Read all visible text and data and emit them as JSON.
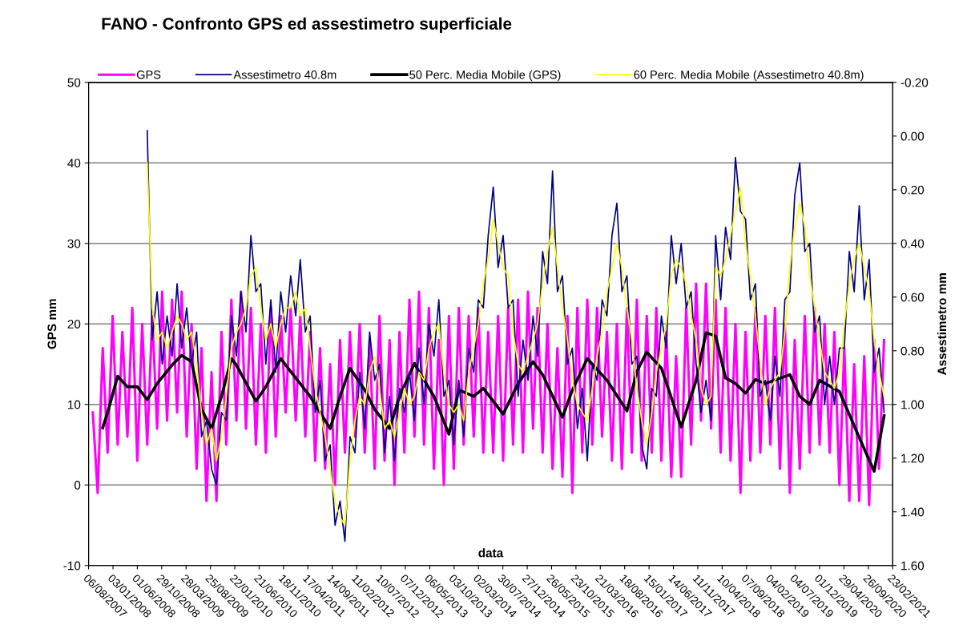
{
  "chart_data": {
    "type": "line",
    "title": "FANO - Confronto GPS ed assestimetro superficiale",
    "xlabel": "data",
    "ylabel": "GPS mm",
    "y2label": "Assestimetro mm",
    "xlim": [
      "2007-08-06",
      "2021-02-23"
    ],
    "xticks": [
      {
        "value": "2007-08-06",
        "label": "06/08/2007"
      },
      {
        "value": "2008-01-03",
        "label": "03/01/2008"
      },
      {
        "value": "2008-06-01",
        "label": "01/06/2008"
      },
      {
        "value": "2008-10-29",
        "label": "29/10/2008"
      },
      {
        "value": "2009-03-28",
        "label": "28/03/2009"
      },
      {
        "value": "2009-08-25",
        "label": "25/08/2009"
      },
      {
        "value": "2010-01-22",
        "label": "22/01/2010"
      },
      {
        "value": "2010-06-21",
        "label": "21/06/2010"
      },
      {
        "value": "2010-11-18",
        "label": "18/11/2010"
      },
      {
        "value": "2011-04-17",
        "label": "17/04/2011"
      },
      {
        "value": "2011-09-14",
        "label": "14/09/2011"
      },
      {
        "value": "2012-02-11",
        "label": "11/02/2012"
      },
      {
        "value": "2012-07-10",
        "label": "10/07/2012"
      },
      {
        "value": "2012-12-07",
        "label": "07/12/2012"
      },
      {
        "value": "2013-05-06",
        "label": "06/05/2013"
      },
      {
        "value": "2013-10-03",
        "label": "03/10/2013"
      },
      {
        "value": "2014-03-02",
        "label": "02/03/2014"
      },
      {
        "value": "2014-07-30",
        "label": "30/07/2014"
      },
      {
        "value": "2014-12-27",
        "label": "27/12/2014"
      },
      {
        "value": "2015-05-26",
        "label": "26/05/2015"
      },
      {
        "value": "2015-10-23",
        "label": "23/10/2015"
      },
      {
        "value": "2016-03-21",
        "label": "21/03/2016"
      },
      {
        "value": "2016-08-18",
        "label": "18/08/2016"
      },
      {
        "value": "2017-01-15",
        "label": "15/01/2017"
      },
      {
        "value": "2017-06-14",
        "label": "14/06/2017"
      },
      {
        "value": "2017-11-11",
        "label": "11/11/2017"
      },
      {
        "value": "2018-04-10",
        "label": "10/04/2018"
      },
      {
        "value": "2018-09-07",
        "label": "07/09/2018"
      },
      {
        "value": "2019-02-04",
        "label": "04/02/2019"
      },
      {
        "value": "2019-07-04",
        "label": "04/07/2019"
      },
      {
        "value": "2019-12-01",
        "label": "01/12/2019"
      },
      {
        "value": "2020-04-29",
        "label": "29/04/2020"
      },
      {
        "value": "2020-09-26",
        "label": "26/09/2020"
      },
      {
        "value": "2021-02-23",
        "label": "23/02/2021"
      }
    ],
    "ylim": [
      -10,
      50
    ],
    "yticks": [
      -10,
      0,
      10,
      20,
      30,
      40,
      50
    ],
    "y2lim": [
      1.6,
      -0.2
    ],
    "y2ticks": [
      {
        "value": -0.2,
        "label": "-0.20"
      },
      {
        "value": 0,
        "label": "0.00"
      },
      {
        "value": 0.2,
        "label": "0.20"
      },
      {
        "value": 0.4,
        "label": "0.40"
      },
      {
        "value": 0.6,
        "label": "0.60"
      },
      {
        "value": 0.8,
        "label": "0.80"
      },
      {
        "value": 1.0,
        "label": "1.00"
      },
      {
        "value": 1.2,
        "label": "1.20"
      },
      {
        "value": 1.4,
        "label": "1.40"
      },
      {
        "value": 1.6,
        "label": "1.60"
      }
    ],
    "grid": "y",
    "legend": "top",
    "marker": "none",
    "line_style": "solid",
    "series": [
      {
        "name": "GPS",
        "color": "#ff00ff",
        "x": [
          "2007-09",
          "2007-10",
          "2007-11",
          "2007-12",
          "2008-01",
          "2008-02",
          "2008-03",
          "2008-04",
          "2008-05",
          "2008-06",
          "2008-07",
          "2008-08",
          "2008-09",
          "2008-10",
          "2008-11",
          "2008-12",
          "2009-01",
          "2009-02",
          "2009-03",
          "2009-04",
          "2009-05",
          "2009-06",
          "2009-07",
          "2009-08",
          "2009-09",
          "2009-10",
          "2009-11",
          "2009-12",
          "2010-01",
          "2010-02",
          "2010-03",
          "2010-04",
          "2010-05",
          "2010-06",
          "2010-07",
          "2010-08",
          "2010-09",
          "2010-10",
          "2010-11",
          "2010-12",
          "2011-01",
          "2011-02",
          "2011-03",
          "2011-04",
          "2011-05",
          "2011-06",
          "2011-07",
          "2011-08",
          "2011-09",
          "2011-10",
          "2011-11",
          "2011-12",
          "2012-01",
          "2012-02",
          "2012-03",
          "2012-04",
          "2012-05",
          "2012-06",
          "2012-07",
          "2012-08",
          "2012-09",
          "2012-10",
          "2012-11",
          "2012-12",
          "2013-01",
          "2013-02",
          "2013-03",
          "2013-04",
          "2013-05",
          "2013-06",
          "2013-07",
          "2013-08",
          "2013-09",
          "2013-10",
          "2013-11",
          "2013-12",
          "2014-01",
          "2014-02",
          "2014-03",
          "2014-04",
          "2014-05",
          "2014-06",
          "2014-07",
          "2014-08",
          "2014-09",
          "2014-10",
          "2014-11",
          "2014-12",
          "2015-01",
          "2015-02",
          "2015-03",
          "2015-04",
          "2015-05",
          "2015-06",
          "2015-07",
          "2015-08",
          "2015-09",
          "2015-10",
          "2015-11",
          "2015-12",
          "2016-01",
          "2016-02",
          "2016-03",
          "2016-04",
          "2016-05",
          "2016-06",
          "2016-07",
          "2016-08",
          "2016-09",
          "2016-10",
          "2016-11",
          "2016-12",
          "2017-01",
          "2017-02",
          "2017-03",
          "2017-04",
          "2017-05",
          "2017-06",
          "2017-07",
          "2017-08",
          "2017-09",
          "2017-10",
          "2017-11",
          "2017-12",
          "2018-01",
          "2018-02",
          "2018-03",
          "2018-04",
          "2018-05",
          "2018-06",
          "2018-07",
          "2018-08",
          "2018-09",
          "2018-10",
          "2018-11",
          "2018-12",
          "2019-01",
          "2019-02",
          "2019-03",
          "2019-04",
          "2019-05",
          "2019-06",
          "2019-07",
          "2019-08",
          "2019-09",
          "2019-10",
          "2019-11",
          "2019-12",
          "2020-01",
          "2020-02",
          "2020-03",
          "2020-04",
          "2020-05",
          "2020-06",
          "2020-07",
          "2020-08",
          "2020-09",
          "2020-10",
          "2020-11",
          "2020-12",
          "2021-01"
        ],
        "values": [
          9,
          -1,
          17,
          4,
          21,
          5,
          19,
          6,
          22,
          3,
          20,
          5,
          21,
          7,
          24,
          8,
          23,
          9,
          24,
          6,
          20,
          2,
          17,
          -2,
          14,
          -2,
          19,
          5,
          23,
          8,
          24,
          7,
          22,
          5,
          20,
          4,
          22,
          6,
          21,
          9,
          22,
          8,
          21,
          6,
          19,
          3,
          17,
          2,
          15,
          0,
          18,
          4,
          19,
          6,
          20,
          4,
          18,
          2,
          21,
          3,
          18,
          0,
          19,
          4,
          23,
          6,
          24,
          5,
          22,
          2,
          18,
          0,
          21,
          2,
          22,
          5,
          21,
          6,
          22,
          4,
          19,
          4,
          21,
          3,
          22,
          5,
          23,
          4,
          24,
          7,
          22,
          4,
          20,
          2,
          17,
          1,
          21,
          -1,
          22,
          4,
          23,
          5,
          22,
          6,
          19,
          3,
          20,
          2,
          22,
          4,
          23,
          3,
          21,
          4,
          22,
          3,
          19,
          1,
          16,
          1,
          22,
          5,
          25,
          8,
          25,
          7,
          23,
          4,
          22,
          3,
          20,
          -1,
          19,
          3,
          22,
          4,
          21,
          5,
          22,
          2,
          20,
          -1,
          18,
          2,
          21,
          4,
          22,
          5,
          20,
          4,
          19,
          0,
          17,
          -2,
          15,
          -2,
          16,
          -2.5,
          18,
          2,
          18
        ]
      },
      {
        "name": "Assestimetro 40.8m",
        "color": "#000080",
        "axis": "y2",
        "x": [
          "2008-08",
          "2008-09",
          "2008-10",
          "2008-11",
          "2008-12",
          "2009-01",
          "2009-02",
          "2009-03",
          "2009-04",
          "2009-05",
          "2009-06",
          "2009-07",
          "2009-08",
          "2009-09",
          "2009-10",
          "2009-11",
          "2009-12",
          "2010-01",
          "2010-02",
          "2010-03",
          "2010-04",
          "2010-05",
          "2010-06",
          "2010-07",
          "2010-08",
          "2010-09",
          "2010-10",
          "2010-11",
          "2010-12",
          "2011-01",
          "2011-02",
          "2011-03",
          "2011-04",
          "2011-05",
          "2011-06",
          "2011-07",
          "2011-08",
          "2011-09",
          "2011-10",
          "2011-11",
          "2011-12",
          "2012-01",
          "2012-02",
          "2012-03",
          "2012-04",
          "2012-05",
          "2012-06",
          "2012-07",
          "2012-08",
          "2012-09",
          "2012-10",
          "2012-11",
          "2012-12",
          "2013-01",
          "2013-02",
          "2013-03",
          "2013-04",
          "2013-05",
          "2013-06",
          "2013-07",
          "2013-08",
          "2013-09",
          "2013-10",
          "2013-11",
          "2013-12",
          "2014-01",
          "2014-02",
          "2014-03",
          "2014-04",
          "2014-05",
          "2014-06",
          "2014-07",
          "2014-08",
          "2014-09",
          "2014-10",
          "2014-11",
          "2014-12",
          "2015-01",
          "2015-02",
          "2015-03",
          "2015-04",
          "2015-05",
          "2015-06",
          "2015-07",
          "2015-08",
          "2015-09",
          "2015-10",
          "2015-11",
          "2015-12",
          "2016-01",
          "2016-02",
          "2016-03",
          "2016-04",
          "2016-05",
          "2016-06",
          "2016-07",
          "2016-08",
          "2016-09",
          "2016-10",
          "2016-11",
          "2016-12",
          "2017-01",
          "2017-02",
          "2017-03",
          "2017-04",
          "2017-05",
          "2017-06",
          "2017-07",
          "2017-08",
          "2017-09",
          "2017-10",
          "2017-11",
          "2017-12",
          "2018-01",
          "2018-02",
          "2018-03",
          "2018-04",
          "2018-05",
          "2018-06",
          "2018-07",
          "2018-08",
          "2018-09",
          "2018-10",
          "2018-11",
          "2018-12",
          "2019-01",
          "2019-02",
          "2019-03",
          "2019-04",
          "2019-05",
          "2019-06",
          "2019-07",
          "2019-08",
          "2019-09",
          "2019-10",
          "2019-11",
          "2019-12",
          "2020-01",
          "2020-02",
          "2020-03",
          "2020-04",
          "2020-05",
          "2020-06",
          "2020-07",
          "2020-08",
          "2020-09",
          "2020-10",
          "2020-11",
          "2020-12",
          "2021-01"
        ],
        "values": [
          -0.02,
          0.76,
          0.58,
          0.85,
          0.67,
          0.82,
          0.55,
          0.79,
          0.64,
          0.85,
          0.73,
          1.12,
          1.06,
          1.24,
          1.3,
          1.03,
          1.06,
          0.67,
          0.82,
          0.58,
          0.73,
          0.37,
          0.58,
          0.55,
          0.85,
          0.61,
          0.88,
          0.58,
          0.73,
          0.52,
          0.67,
          0.46,
          0.73,
          0.67,
          1.03,
          0.91,
          1.21,
          1.15,
          1.45,
          1.36,
          1.51,
          1.12,
          1.18,
          0.88,
          1.09,
          0.73,
          0.91,
          0.85,
          1.18,
          0.97,
          1.21,
          0.94,
          1.03,
          0.88,
          1.06,
          0.79,
          1.0,
          0.7,
          0.82,
          0.61,
          0.97,
          0.91,
          1.15,
          0.91,
          1.12,
          0.79,
          0.88,
          0.61,
          0.64,
          0.37,
          0.19,
          0.49,
          0.37,
          0.64,
          0.61,
          0.97,
          0.76,
          0.91,
          0.67,
          0.82,
          0.43,
          0.55,
          0.13,
          0.58,
          0.52,
          0.85,
          0.79,
          1.09,
          0.94,
          1.21,
          0.85,
          0.91,
          0.61,
          0.67,
          0.37,
          0.25,
          0.58,
          0.52,
          0.85,
          0.82,
          1.15,
          1.24,
          0.94,
          0.97,
          0.67,
          0.79,
          0.37,
          0.55,
          0.4,
          0.64,
          0.58,
          0.85,
          1.03,
          0.91,
          1.06,
          0.37,
          0.61,
          0.34,
          0.46,
          0.08,
          0.28,
          0.31,
          0.61,
          0.55,
          0.97,
          0.91,
          1.06,
          0.82,
          0.97,
          0.61,
          0.58,
          0.22,
          0.1,
          0.43,
          0.4,
          0.73,
          0.67,
          1.0,
          0.82,
          1.0,
          0.79,
          0.79,
          0.43,
          0.58,
          0.26,
          0.61,
          0.46,
          0.88,
          0.79,
          1.03
        ]
      },
      {
        "name": "50 Perc. Media Mobile (GPS)",
        "color": "#000000",
        "x": [
          "2007-11",
          "2007-12",
          "2008-02",
          "2008-04",
          "2008-06",
          "2008-08",
          "2008-10",
          "2009-01",
          "2009-03",
          "2009-05",
          "2009-07",
          "2009-09",
          "2009-11",
          "2010-01",
          "2010-02",
          "2010-06",
          "2010-08",
          "2010-11",
          "2011-01",
          "2011-05",
          "2011-09",
          "2011-11",
          "2012-01",
          "2012-04",
          "2012-06",
          "2012-09",
          "2012-11",
          "2013-02",
          "2013-03",
          "2013-06",
          "2013-09",
          "2013-11",
          "2014-02",
          "2014-04",
          "2014-08",
          "2014-11",
          "2015-02",
          "2015-04",
          "2015-08",
          "2015-10",
          "2016-01",
          "2016-05",
          "2016-09",
          "2016-11",
          "2017-01",
          "2017-04",
          "2017-08",
          "2017-11",
          "2018-01",
          "2018-03",
          "2018-05",
          "2018-07",
          "2018-09",
          "2018-11",
          "2019-01",
          "2019-06",
          "2019-08",
          "2019-10",
          "2019-12",
          "2020-04",
          "2020-08",
          "2020-11",
          "2021-01"
        ],
        "values": [
          7.1,
          9.0,
          13.5,
          12.2,
          12.2,
          10.6,
          12.6,
          14.9,
          16.1,
          15.3,
          9.4,
          7.0,
          11.0,
          15.7,
          14.9,
          10.4,
          12.2,
          15.7,
          14.1,
          11.0,
          7.0,
          11.0,
          14.5,
          11.8,
          9.4,
          7.0,
          11.0,
          15.1,
          14.1,
          11.0,
          6.3,
          11.8,
          11.0,
          12.0,
          8.8,
          12.6,
          15.3,
          13.7,
          8.4,
          11.8,
          15.7,
          13.0,
          9.2,
          14.1,
          16.5,
          14.5,
          7.2,
          13.0,
          18.9,
          18.5,
          13.3,
          12.6,
          11.4,
          13.1,
          12.6,
          13.7,
          11.0,
          10.0,
          13.0,
          11.6,
          5.9,
          1.7,
          8.6
        ]
      },
      {
        "name": "60 Perc. Media Mobile (Assestimetro 40.8m)",
        "color": "#ffff00",
        "axis": "y2",
        "x": [
          "2008-08",
          "2008-09",
          "2008-10",
          "2008-11",
          "2008-12",
          "2009-01",
          "2009-02",
          "2009-03",
          "2009-04",
          "2009-05",
          "2009-06",
          "2009-07",
          "2009-08",
          "2009-09",
          "2009-10",
          "2009-11",
          "2009-12",
          "2010-01",
          "2010-02",
          "2010-03",
          "2010-04",
          "2010-05",
          "2010-06",
          "2010-07",
          "2010-08",
          "2010-09",
          "2010-10",
          "2010-11",
          "2010-12",
          "2011-01",
          "2011-02",
          "2011-03",
          "2011-04",
          "2011-05",
          "2011-06",
          "2011-07",
          "2011-08",
          "2011-09",
          "2011-10",
          "2011-11",
          "2011-12",
          "2012-01",
          "2012-02",
          "2012-03",
          "2012-04",
          "2012-05",
          "2012-06",
          "2012-07",
          "2012-08",
          "2012-09",
          "2012-10",
          "2012-11",
          "2012-12",
          "2013-01",
          "2013-02",
          "2013-03",
          "2013-04",
          "2013-05",
          "2013-06",
          "2013-07",
          "2013-08",
          "2013-09",
          "2013-10",
          "2013-11",
          "2013-12",
          "2014-01",
          "2014-02",
          "2014-03",
          "2014-04",
          "2014-05",
          "2014-06",
          "2014-07",
          "2014-08",
          "2014-09",
          "2014-10",
          "2014-11",
          "2014-12",
          "2015-01",
          "2015-02",
          "2015-03",
          "2015-04",
          "2015-05",
          "2015-06",
          "2015-07",
          "2015-08",
          "2015-09",
          "2015-10",
          "2015-11",
          "2015-12",
          "2016-01",
          "2016-02",
          "2016-03",
          "2016-04",
          "2016-05",
          "2016-06",
          "2016-07",
          "2016-08",
          "2016-09",
          "2016-10",
          "2016-11",
          "2016-12",
          "2017-01",
          "2017-02",
          "2017-03",
          "2017-04",
          "2017-05",
          "2017-06",
          "2017-07",
          "2017-08",
          "2017-09",
          "2017-10",
          "2017-11",
          "2017-12",
          "2018-01",
          "2018-02",
          "2018-03",
          "2018-04",
          "2018-05",
          "2018-06",
          "2018-07",
          "2018-08",
          "2018-09",
          "2018-10",
          "2018-11",
          "2018-12",
          "2019-01",
          "2019-02",
          "2019-03",
          "2019-04",
          "2019-05",
          "2019-06",
          "2019-07",
          "2019-08",
          "2019-09",
          "2019-10",
          "2019-11",
          "2019-12",
          "2020-01",
          "2020-02",
          "2020-03",
          "2020-04",
          "2020-05",
          "2020-06",
          "2020-07",
          "2020-08",
          "2020-09",
          "2020-10",
          "2020-11",
          "2020-12",
          "2021-01"
        ],
        "values": [
          0.1,
          0.64,
          0.76,
          0.73,
          0.79,
          0.73,
          0.67,
          0.7,
          0.76,
          0.73,
          0.85,
          1.03,
          1.15,
          1.09,
          1.21,
          1.12,
          0.97,
          0.79,
          0.73,
          0.7,
          0.64,
          0.52,
          0.49,
          0.64,
          0.76,
          0.7,
          0.79,
          0.7,
          0.64,
          0.64,
          0.58,
          0.67,
          0.64,
          0.79,
          0.94,
          1.03,
          1.12,
          1.24,
          1.36,
          1.42,
          1.45,
          1.21,
          1.06,
          0.97,
          1.0,
          0.88,
          0.82,
          0.94,
          1.09,
          1.06,
          1.12,
          1.03,
          0.94,
          1.0,
          0.97,
          0.88,
          0.91,
          0.79,
          0.73,
          0.7,
          0.88,
          1.0,
          1.03,
          1.0,
          1.06,
          0.88,
          0.79,
          0.7,
          0.55,
          0.46,
          0.31,
          0.4,
          0.49,
          0.52,
          0.73,
          0.85,
          0.88,
          0.82,
          0.76,
          0.7,
          0.55,
          0.43,
          0.34,
          0.49,
          0.64,
          0.76,
          0.91,
          1.0,
          1.03,
          1.06,
          0.94,
          0.82,
          0.73,
          0.58,
          0.49,
          0.4,
          0.49,
          0.64,
          0.76,
          0.94,
          1.06,
          1.15,
          1.03,
          0.88,
          0.79,
          0.7,
          0.52,
          0.46,
          0.49,
          0.55,
          0.67,
          0.76,
          0.94,
          1.0,
          0.97,
          0.49,
          0.52,
          0.46,
          0.37,
          0.28,
          0.19,
          0.4,
          0.52,
          0.67,
          0.85,
          1.0,
          0.94,
          0.91,
          0.88,
          0.73,
          0.49,
          0.34,
          0.25,
          0.34,
          0.52,
          0.64,
          0.76,
          0.88,
          0.91,
          0.94,
          0.88,
          0.7,
          0.55,
          0.46,
          0.4,
          0.49,
          0.58,
          0.76,
          0.88,
          0.97
        ]
      }
    ]
  }
}
